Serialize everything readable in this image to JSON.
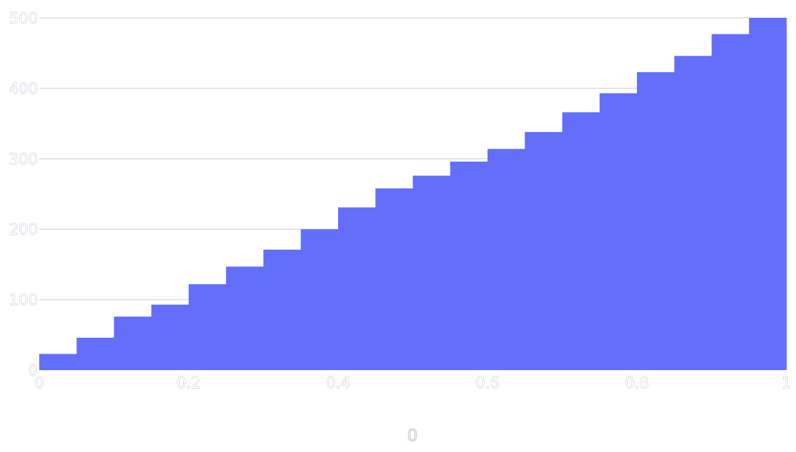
{
  "chart_data": {
    "type": "area",
    "x": [
      0,
      0.05,
      0.1,
      0.15,
      0.2,
      0.25,
      0.3,
      0.35,
      0.4,
      0.45,
      0.5,
      0.55,
      0.6,
      0.65,
      0.7,
      0.75,
      0.8,
      0.85,
      0.9,
      0.95
    ],
    "series": [
      {
        "values": [
          23,
          46,
          76,
          93,
          122,
          147,
          171,
          200,
          231,
          258,
          276,
          296,
          314,
          338,
          366,
          393,
          423,
          446,
          477,
          500
        ],
        "color": "#636efa"
      }
    ],
    "xlim": [
      0,
      1
    ],
    "ylim": [
      0,
      500
    ],
    "x_ticks": [
      "0",
      "0.2",
      "0.4",
      "0.6",
      "0.8",
      "1"
    ],
    "y_ticks": [
      "0",
      "100",
      "200",
      "300",
      "400",
      "500"
    ],
    "xlabel": "0",
    "grid": true
  }
}
